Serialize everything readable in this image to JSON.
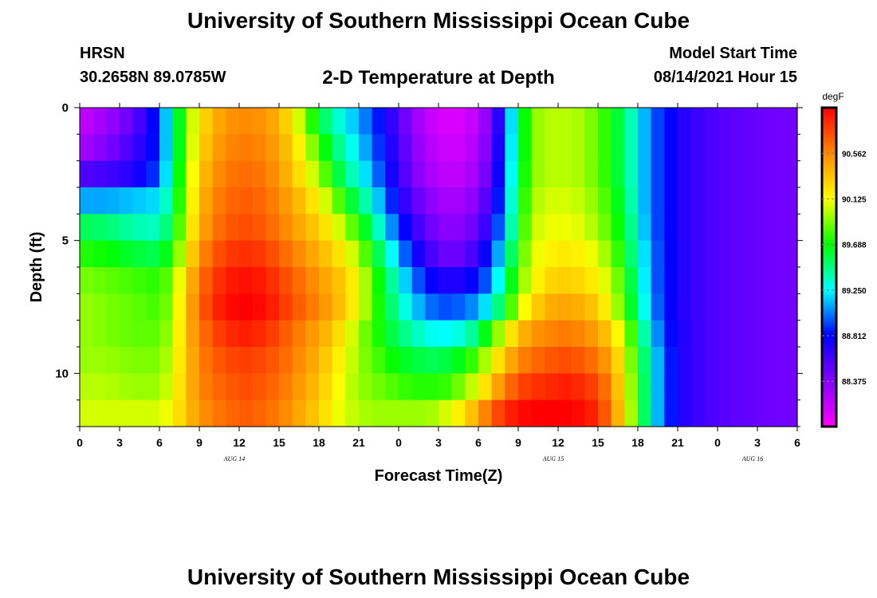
{
  "header": {
    "title": "University of Southern Mississippi Ocean Cube",
    "station": "HRSN",
    "coords": "30.2658N  89.0785W",
    "subtitle": "2-D Temperature at Depth",
    "model_label": "Model Start Time",
    "model_time": "08/14/2021 Hour 15"
  },
  "footer": {
    "title": "University of Southern Mississippi Ocean Cube"
  },
  "chart_data": {
    "type": "heatmap",
    "title": "2-D Temperature at Depth",
    "xlabel": "Forecast Time(Z)",
    "ylabel": "Depth (ft)",
    "x_hours": [
      0,
      3,
      6,
      9,
      12,
      15,
      18,
      21,
      24,
      27,
      30,
      33,
      36,
      39,
      42,
      45,
      48,
      51,
      54
    ],
    "x_tick_labels": [
      "0",
      "3",
      "6",
      "9",
      "12",
      "15",
      "18",
      "21",
      "0",
      "3",
      "6",
      "9",
      "12",
      "15",
      "18",
      "21",
      "0",
      "3",
      "6"
    ],
    "date_labels": [
      {
        "hour": 12,
        "text": "AUG 14"
      },
      {
        "hour": 36,
        "text": "AUG 15"
      },
      {
        "hour": 51,
        "text": "AUG 16"
      }
    ],
    "xlim": [
      0,
      54
    ],
    "ylim": [
      0,
      12
    ],
    "y_tick_labels": [
      "0",
      "5",
      "10"
    ],
    "y_ticks": [
      0,
      5,
      10
    ],
    "depth_rows": [
      0.5,
      1.5,
      2.5,
      3.5,
      4.5,
      5.5,
      6.5,
      7.5,
      8.5,
      9.5,
      10.5,
      11.5
    ],
    "time_knots": [
      0,
      2,
      4,
      6,
      7,
      8,
      9,
      10,
      11,
      12,
      13,
      14,
      15,
      16,
      17,
      18,
      19,
      20,
      21,
      22,
      23,
      24,
      25,
      26,
      27,
      28,
      29,
      30,
      31,
      32,
      33,
      34,
      35,
      36,
      37,
      38,
      39,
      40,
      41,
      42,
      43,
      44,
      45,
      46,
      47,
      48,
      49,
      50,
      51,
      52,
      53,
      54
    ],
    "temperature_degF": [
      [
        88.15,
        88.3,
        88.5,
        88.9,
        89.4,
        89.9,
        90.2,
        90.4,
        90.5,
        90.55,
        90.55,
        90.5,
        90.4,
        90.2,
        89.9,
        89.6,
        89.4,
        89.25,
        89.1,
        88.95,
        88.75,
        88.55,
        88.35,
        88.2,
        88.1,
        88.05,
        88.1,
        88.2,
        88.45,
        88.9,
        89.5,
        89.9,
        90.0,
        90.0,
        90.0,
        89.95,
        89.85,
        89.7,
        89.5,
        89.25,
        89.0,
        88.85,
        88.75,
        88.65,
        88.6,
        88.55,
        88.52,
        88.5,
        88.48,
        88.46,
        88.45,
        88.45
      ],
      [
        88.25,
        88.4,
        88.6,
        88.9,
        89.4,
        89.9,
        90.25,
        90.45,
        90.55,
        90.6,
        90.6,
        90.55,
        90.45,
        90.3,
        90.05,
        89.8,
        89.55,
        89.35,
        89.2,
        89.0,
        88.8,
        88.6,
        88.4,
        88.25,
        88.15,
        88.1,
        88.15,
        88.25,
        88.5,
        88.95,
        89.5,
        89.9,
        90.0,
        90.0,
        90.0,
        89.95,
        89.85,
        89.7,
        89.5,
        89.25,
        89.0,
        88.85,
        88.75,
        88.65,
        88.6,
        88.55,
        88.52,
        88.5,
        88.48,
        88.46,
        88.45,
        88.45
      ],
      [
        88.55,
        88.6,
        88.7,
        88.95,
        89.45,
        89.95,
        90.3,
        90.5,
        90.6,
        90.65,
        90.65,
        90.6,
        90.5,
        90.35,
        90.15,
        89.95,
        89.7,
        89.45,
        89.3,
        89.1,
        88.85,
        88.65,
        88.45,
        88.3,
        88.2,
        88.15,
        88.2,
        88.3,
        88.55,
        89.0,
        89.55,
        89.9,
        90.0,
        90.0,
        90.0,
        89.95,
        89.85,
        89.7,
        89.5,
        89.25,
        89.0,
        88.85,
        88.75,
        88.65,
        88.6,
        88.55,
        88.52,
        88.5,
        88.48,
        88.46,
        88.45,
        88.45
      ],
      [
        89.1,
        89.1,
        89.15,
        89.2,
        89.5,
        90.0,
        90.35,
        90.55,
        90.65,
        90.7,
        90.7,
        90.65,
        90.55,
        90.45,
        90.3,
        90.15,
        89.95,
        89.7,
        89.5,
        89.3,
        89.0,
        88.75,
        88.55,
        88.4,
        88.3,
        88.25,
        88.3,
        88.4,
        88.65,
        89.05,
        89.6,
        89.95,
        90.05,
        90.05,
        90.05,
        90.0,
        89.9,
        89.75,
        89.55,
        89.25,
        89.0,
        88.85,
        88.75,
        88.65,
        88.6,
        88.55,
        88.52,
        88.5,
        88.48,
        88.46,
        88.45,
        88.45
      ],
      [
        89.55,
        89.5,
        89.4,
        89.35,
        89.6,
        90.05,
        90.4,
        90.6,
        90.7,
        90.75,
        90.75,
        90.7,
        90.6,
        90.5,
        90.4,
        90.3,
        90.15,
        89.95,
        89.75,
        89.5,
        89.2,
        88.9,
        88.7,
        88.5,
        88.4,
        88.35,
        88.4,
        88.5,
        88.75,
        89.15,
        89.65,
        90.0,
        90.1,
        90.1,
        90.1,
        90.05,
        89.95,
        89.8,
        89.6,
        89.3,
        89.0,
        88.85,
        88.75,
        88.65,
        88.6,
        88.55,
        88.52,
        88.5,
        88.48,
        88.46,
        88.45,
        88.45
      ],
      [
        89.75,
        89.7,
        89.6,
        89.55,
        89.75,
        90.15,
        90.5,
        90.7,
        90.8,
        90.85,
        90.85,
        90.8,
        90.7,
        90.6,
        90.5,
        90.4,
        90.3,
        90.15,
        89.95,
        89.7,
        89.4,
        89.1,
        88.85,
        88.65,
        88.5,
        88.45,
        88.5,
        88.65,
        88.9,
        89.3,
        89.75,
        90.05,
        90.15,
        90.2,
        90.2,
        90.15,
        90.05,
        89.9,
        89.65,
        89.35,
        89.05,
        88.85,
        88.75,
        88.65,
        88.6,
        88.55,
        88.52,
        88.5,
        88.48,
        88.46,
        88.45,
        88.45
      ],
      [
        89.9,
        89.85,
        89.8,
        89.75,
        89.9,
        90.3,
        90.6,
        90.8,
        90.9,
        90.95,
        90.95,
        90.9,
        90.8,
        90.7,
        90.6,
        90.5,
        90.4,
        90.3,
        90.1,
        89.85,
        89.55,
        89.3,
        89.05,
        88.85,
        88.75,
        88.7,
        88.75,
        88.85,
        89.05,
        89.45,
        89.85,
        90.1,
        90.25,
        90.3,
        90.3,
        90.25,
        90.15,
        90.0,
        89.75,
        89.4,
        89.05,
        88.85,
        88.75,
        88.65,
        88.6,
        88.55,
        88.52,
        88.5,
        88.48,
        88.46,
        88.45,
        88.45
      ],
      [
        89.95,
        89.9,
        89.85,
        89.8,
        89.95,
        90.35,
        90.65,
        90.85,
        90.95,
        91.0,
        91.0,
        90.95,
        90.85,
        90.75,
        90.65,
        90.55,
        90.45,
        90.3,
        90.1,
        89.85,
        89.6,
        89.4,
        89.2,
        89.05,
        88.95,
        88.95,
        89.0,
        89.1,
        89.3,
        89.65,
        90.0,
        90.25,
        90.4,
        90.45,
        90.45,
        90.4,
        90.3,
        90.1,
        89.8,
        89.45,
        89.1,
        88.85,
        88.75,
        88.65,
        88.6,
        88.55,
        88.52,
        88.5,
        88.48,
        88.46,
        88.45,
        88.45
      ],
      [
        89.95,
        89.9,
        89.85,
        89.85,
        90.0,
        90.35,
        90.6,
        90.75,
        90.85,
        90.9,
        90.9,
        90.85,
        90.75,
        90.65,
        90.55,
        90.45,
        90.35,
        90.15,
        89.95,
        89.8,
        89.65,
        89.5,
        89.4,
        89.3,
        89.25,
        89.25,
        89.35,
        89.5,
        89.8,
        90.1,
        90.35,
        90.5,
        90.55,
        90.6,
        90.6,
        90.55,
        90.45,
        90.3,
        90.0,
        89.6,
        89.2,
        88.9,
        88.75,
        88.65,
        88.6,
        88.55,
        88.52,
        88.5,
        88.48,
        88.46,
        88.45,
        88.45
      ],
      [
        89.95,
        89.95,
        89.9,
        89.9,
        90.05,
        90.35,
        90.55,
        90.7,
        90.75,
        90.8,
        90.8,
        90.75,
        90.7,
        90.6,
        90.5,
        90.4,
        90.25,
        90.1,
        89.95,
        89.85,
        89.75,
        89.65,
        89.6,
        89.55,
        89.55,
        89.6,
        89.7,
        89.85,
        90.1,
        90.35,
        90.55,
        90.65,
        90.7,
        90.75,
        90.75,
        90.7,
        90.6,
        90.45,
        90.1,
        89.7,
        89.3,
        88.95,
        88.75,
        88.65,
        88.6,
        88.55,
        88.52,
        88.5,
        88.48,
        88.46,
        88.45,
        88.45
      ],
      [
        90.0,
        90.0,
        89.95,
        89.95,
        90.1,
        90.35,
        90.55,
        90.65,
        90.7,
        90.75,
        90.75,
        90.7,
        90.65,
        90.55,
        90.45,
        90.35,
        90.2,
        90.05,
        89.95,
        89.9,
        89.85,
        89.8,
        89.75,
        89.75,
        89.75,
        89.8,
        89.95,
        90.1,
        90.35,
        90.6,
        90.75,
        90.85,
        90.85,
        90.9,
        90.9,
        90.85,
        90.75,
        90.55,
        90.15,
        89.75,
        89.3,
        88.95,
        88.75,
        88.65,
        88.6,
        88.55,
        88.52,
        88.5,
        88.48,
        88.46,
        88.45,
        88.45
      ],
      [
        90.05,
        90.05,
        90.05,
        90.05,
        90.15,
        90.35,
        90.5,
        90.6,
        90.65,
        90.7,
        90.7,
        90.65,
        90.6,
        90.5,
        90.4,
        90.3,
        90.15,
        90.05,
        90.0,
        89.95,
        89.95,
        89.95,
        89.95,
        89.95,
        90.0,
        90.1,
        90.25,
        90.45,
        90.7,
        90.85,
        90.95,
        91.0,
        91.0,
        91.0,
        91.0,
        90.95,
        90.85,
        90.6,
        90.2,
        89.75,
        89.3,
        88.95,
        88.75,
        88.65,
        88.6,
        88.55,
        88.52,
        88.5,
        88.48,
        88.46,
        88.45,
        88.45
      ]
    ],
    "colorbar": {
      "label": "degF",
      "min": 87.94,
      "max": 91.0,
      "tick_values": [
        88.375,
        88.812,
        89.25,
        89.688,
        90.125,
        90.562
      ],
      "tick_labels": [
        "88.375",
        "88.812",
        "89.250",
        "89.688",
        "90.125",
        "90.562"
      ],
      "colors": [
        "#ff00ff",
        "#8800ff",
        "#0000ff",
        "#00ffff",
        "#00ff00",
        "#ffff00",
        "#ff8800",
        "#ff0000"
      ]
    }
  }
}
